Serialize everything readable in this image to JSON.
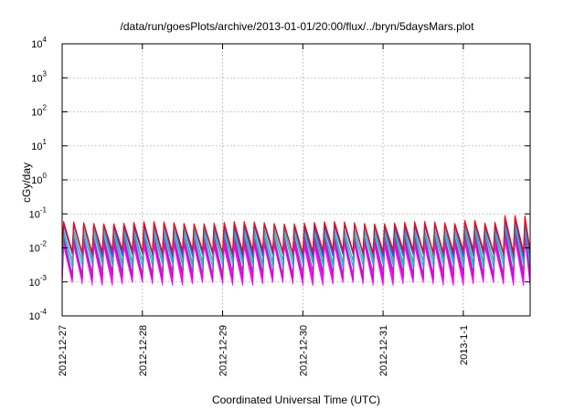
{
  "chart_data": {
    "type": "line",
    "title": "/data/run/goesPlots/archive/2013-01-01/20:00/flux/../bryn/5daysMars.plot",
    "xlabel": "Coordinated Universal Time (UTC)",
    "ylabel": "cGy/day",
    "yscale": "log",
    "ylim": [
      0.0001,
      10000
    ],
    "xlim": [
      "2012-12-27T00:00",
      "2013-01-01T20:00"
    ],
    "grid": true,
    "x_ticks": [
      {
        "label": "2012-12-27",
        "date": "2012-12-27"
      },
      {
        "label": "2012-12-28",
        "date": "2012-12-28"
      },
      {
        "label": "2012-12-29",
        "date": "2012-12-29"
      },
      {
        "label": "2012-12-30",
        "date": "2012-12-30"
      },
      {
        "label": "2012-12-31",
        "date": "2012-12-31"
      },
      {
        "label": "2013-1-1",
        "date": "2013-01-01"
      }
    ],
    "y_ticks": [
      {
        "base": "10",
        "exp": "-4",
        "value": 0.0001
      },
      {
        "base": "10",
        "exp": "-3",
        "value": 0.001
      },
      {
        "base": "10",
        "exp": "-2",
        "value": 0.01
      },
      {
        "base": "10",
        "exp": "-1",
        "value": 0.1
      },
      {
        "base": "10",
        "exp": "0",
        "value": 1
      },
      {
        "base": "10",
        "exp": "1",
        "value": 10
      },
      {
        "base": "10",
        "exp": "2",
        "value": 100
      },
      {
        "base": "10",
        "exp": "3",
        "value": 1000
      },
      {
        "base": "10",
        "exp": "4",
        "value": 10000
      }
    ],
    "sawtooth_period_hours": 3,
    "series": [
      {
        "color": "#ff00ff",
        "peak": 0.012,
        "trough": 0.0009
      },
      {
        "color": "#ee00ee",
        "peak": 0.015,
        "trough": 0.0011
      },
      {
        "color": "#cc00cc",
        "peak": 0.018,
        "trough": 0.0014
      },
      {
        "color": "#aa33aa",
        "peak": 0.022,
        "trough": 0.0018
      },
      {
        "color": "#00cccc",
        "peak": 0.028,
        "trough": 0.003
      },
      {
        "color": "#33aaaa",
        "peak": 0.035,
        "trough": 0.004
      },
      {
        "color": "#3355dd",
        "peak": 0.045,
        "trough": 0.006
      },
      {
        "color": "#5533cc",
        "peak": 0.05,
        "trough": 0.007
      },
      {
        "color": "#ff0000",
        "peak": 0.055,
        "trough": 0.008
      }
    ]
  }
}
